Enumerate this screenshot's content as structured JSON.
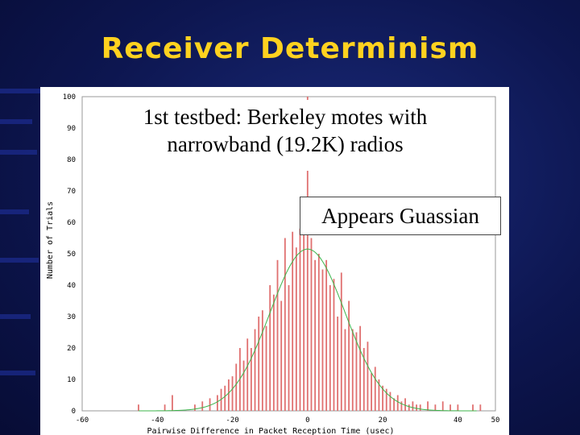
{
  "slide": {
    "title": "Receiver Determinism",
    "callout_main_line1": "1st testbed: Berkeley motes with",
    "callout_main_line2": "narrowband (19.2K) radios",
    "callout_secondary": "Appears Guassian"
  },
  "colors": {
    "background": "#0d1650",
    "title": "#ffd21f",
    "bars": "#e07070",
    "fit_curve": "#3cb44b",
    "axis_text": "#000000"
  },
  "chart_data": {
    "type": "bar",
    "xlabel": "Pairwise Difference in Packet Reception Time (usec)",
    "ylabel": "Number of Trials",
    "xlim": [
      -60,
      50
    ],
    "ylim": [
      0,
      100
    ],
    "xticks": [
      -60,
      -40,
      -20,
      0,
      20,
      40,
      50
    ],
    "yticks": [
      0,
      10,
      20,
      30,
      40,
      50,
      60,
      70,
      80,
      90,
      100
    ],
    "x": [
      -45,
      -38,
      -36,
      -30,
      -28,
      -26,
      -24,
      -23,
      -22,
      -21,
      -20,
      -19,
      -18,
      -17,
      -16,
      -15,
      -14,
      -13,
      -12,
      -11,
      -10,
      -9,
      -8,
      -7,
      -6,
      -5,
      -4,
      -3,
      -2,
      -1,
      0,
      1,
      2,
      3,
      4,
      5,
      6,
      7,
      8,
      9,
      10,
      11,
      12,
      13,
      14,
      15,
      16,
      17,
      18,
      19,
      20,
      21,
      22,
      23,
      24,
      25,
      26,
      27,
      28,
      29,
      30,
      32,
      34,
      36,
      38,
      40,
      44,
      46
    ],
    "values": [
      2,
      2,
      5,
      2,
      3,
      4,
      5,
      7,
      8,
      10,
      11,
      15,
      20,
      16,
      23,
      20,
      26,
      30,
      32,
      27,
      40,
      37,
      48,
      35,
      55,
      40,
      57,
      52,
      58,
      60,
      100,
      55,
      48,
      50,
      45,
      48,
      40,
      42,
      30,
      44,
      26,
      35,
      26,
      25,
      27,
      20,
      22,
      12,
      14,
      10,
      8,
      7,
      6,
      4,
      5,
      3,
      4,
      2,
      3,
      2,
      2,
      3,
      2,
      3,
      2,
      2,
      2,
      2
    ],
    "fit": {
      "type": "gaussian",
      "mean": 0,
      "std": 10,
      "peak": 51.5
    }
  }
}
